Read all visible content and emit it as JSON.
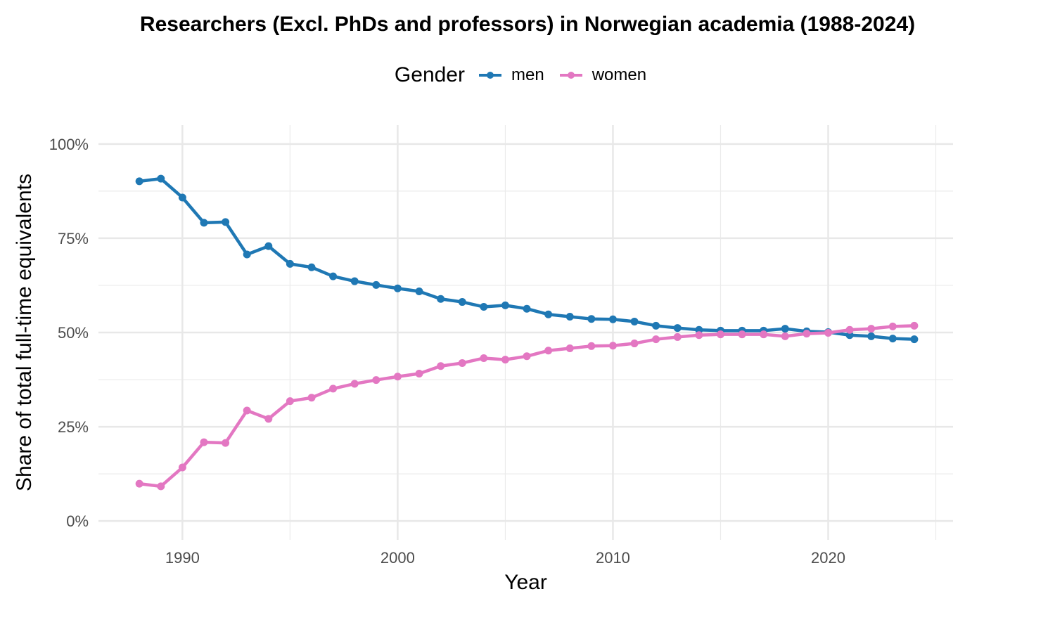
{
  "chart_data": {
    "type": "line",
    "title": "Researchers (Excl. PhDs and professors) in Norwegian academia (1988-2024)",
    "xlabel": "Year",
    "ylabel": "Share of total full-time equivalents",
    "legend": {
      "title": "Gender",
      "position": "top"
    },
    "xlim": [
      1986.1,
      2025.8
    ],
    "ylim": [
      -5,
      105
    ],
    "xticks": [
      1990,
      2000,
      2010,
      2020
    ],
    "xtick_labels": [
      "1990",
      "2000",
      "2010",
      "2020"
    ],
    "yticks": [
      0,
      25,
      50,
      75,
      100
    ],
    "ytick_labels": [
      "0%",
      "25%",
      "50%",
      "75%",
      "100%"
    ],
    "grid": true,
    "x": [
      1988,
      1989,
      1990,
      1991,
      1992,
      1993,
      1994,
      1995,
      1996,
      1997,
      1998,
      1999,
      2000,
      2001,
      2002,
      2003,
      2004,
      2005,
      2006,
      2007,
      2008,
      2009,
      2010,
      2011,
      2012,
      2013,
      2014,
      2015,
      2016,
      2017,
      2018,
      2019,
      2020,
      2021,
      2022,
      2023,
      2024
    ],
    "series": [
      {
        "name": "men",
        "color": "#1f78b4",
        "values": [
          90.1,
          90.8,
          85.8,
          79.1,
          79.3,
          70.7,
          72.9,
          68.2,
          67.3,
          64.9,
          63.6,
          62.6,
          61.7,
          60.9,
          58.9,
          58.1,
          56.8,
          57.2,
          56.3,
          54.8,
          54.2,
          53.6,
          53.5,
          52.9,
          51.8,
          51.2,
          50.7,
          50.5,
          50.5,
          50.5,
          51.0,
          50.3,
          50.1,
          49.3,
          49.0,
          48.4,
          48.2
        ]
      },
      {
        "name": "women",
        "color": "#e377c2",
        "values": [
          9.9,
          9.2,
          14.2,
          20.9,
          20.7,
          29.3,
          27.1,
          31.8,
          32.7,
          35.1,
          36.4,
          37.4,
          38.3,
          39.1,
          41.1,
          41.9,
          43.2,
          42.8,
          43.7,
          45.2,
          45.8,
          46.4,
          46.5,
          47.1,
          48.2,
          48.8,
          49.3,
          49.5,
          49.5,
          49.5,
          49.0,
          49.7,
          49.9,
          50.7,
          51.0,
          51.6,
          51.8
        ]
      }
    ]
  }
}
